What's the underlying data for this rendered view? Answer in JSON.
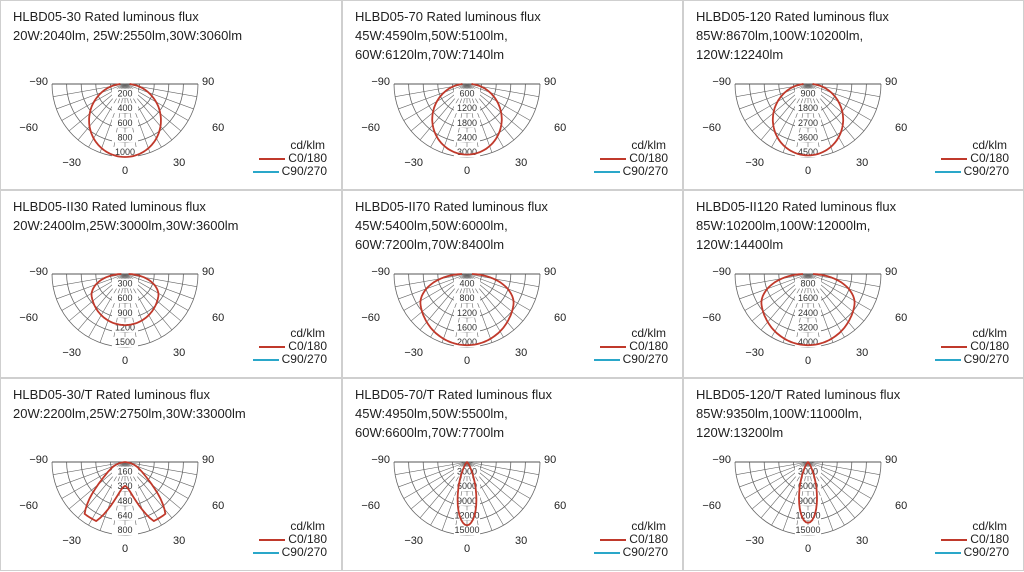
{
  "legend": {
    "unit": "cd/klm",
    "c0_label": "C0/180",
    "c90_label": "C90/270",
    "c0_color": "#c0392b",
    "c90_color": "#2aa7c9"
  },
  "angle_labels": {
    "neg90": "−90",
    "pos90": "90",
    "neg60": "−60",
    "pos60": "60",
    "neg30": "−30",
    "pos30": "30",
    "zero": "0"
  },
  "chart_data": [
    {
      "type": "polar",
      "title_lines": [
        "HLBD05-30 Rated luminous flux",
        "20W:2040lm, 25W:2550lm,30W:3060lm"
      ],
      "radial_ticks": [
        "200",
        "400",
        "600",
        "800",
        "1000"
      ],
      "rmax": 1000,
      "curve": {
        "name": "C0/180",
        "shape": "narrow",
        "peak": 1000,
        "edge": 180
      }
    },
    {
      "type": "polar",
      "title_lines": [
        "HLBD05-70 Rated luminous flux",
        "45W:4590lm,50W:5100lm,",
        "60W:6120lm,70W:7140lm"
      ],
      "radial_ticks": [
        "600",
        "1200",
        "1800",
        "2400",
        "3000"
      ],
      "rmax": 3000,
      "curve": {
        "name": "C0/180",
        "shape": "narrow",
        "peak": 2900,
        "edge": 200
      }
    },
    {
      "type": "polar",
      "title_lines": [
        "HLBD05-120 Rated luminous flux",
        "85W:8670lm,100W:10200lm,",
        "120W:12240lm"
      ],
      "radial_ticks": [
        "900",
        "1800",
        "2700",
        "3600",
        "4500"
      ],
      "rmax": 4500,
      "curve": {
        "name": "C0/180",
        "shape": "narrow",
        "peak": 4400,
        "edge": 300
      }
    },
    {
      "type": "polar",
      "title_lines": [
        "HLBD05-II30 Rated luminous flux",
        "20W:2400lm,25W:3000lm,30W:3600lm"
      ],
      "radial_ticks": [
        "300",
        "600",
        "900",
        "1200",
        "1500"
      ],
      "rmax": 1500,
      "curve": {
        "name": "C0/180",
        "shape": "wide",
        "peak": 1050,
        "edge": 250
      }
    },
    {
      "type": "polar",
      "title_lines": [
        "HLBD05-II70 Rated luminous flux",
        "45W:5400lm,50W:6000lm,",
        "60W:7200lm,70W:8400lm"
      ],
      "radial_ticks": [
        "400",
        "800",
        "1200",
        "1600",
        "2000"
      ],
      "rmax": 2000,
      "curve": {
        "name": "C0/180",
        "shape": "wide",
        "peak": 1950,
        "edge": 300
      }
    },
    {
      "type": "polar",
      "title_lines": [
        "HLBD05-II120 Rated luminous flux",
        "85W:10200lm,100W:12000lm,",
        "120W:14400lm"
      ],
      "radial_ticks": [
        "800",
        "1600",
        "2400",
        "3200",
        "4000"
      ],
      "rmax": 4000,
      "curve": {
        "name": "C0/180",
        "shape": "wide",
        "peak": 3900,
        "edge": 500
      }
    },
    {
      "type": "polar",
      "title_lines": [
        "HLBD05-30/T Rated luminous flux",
        "20W:2200lm,25W:2750lm,30W:33000lm"
      ],
      "radial_ticks": [
        "160",
        "320",
        "480",
        "640",
        "800"
      ],
      "rmax": 800,
      "curve": {
        "name": "C0/180",
        "shape": "batwing",
        "peak": 720,
        "edge": 0
      }
    },
    {
      "type": "polar",
      "title_lines": [
        "HLBD05-70/T Rated luminous flux",
        "45W:4950lm,50W:5500lm,",
        "60W:6600lm,70W:7700lm"
      ],
      "radial_ticks": [
        "3000",
        "6000",
        "9000",
        "12000",
        "15000"
      ],
      "rmax": 15000,
      "curve": {
        "name": "C0/180",
        "shape": "spot",
        "peak": 13000,
        "edge": 0
      }
    },
    {
      "type": "polar",
      "title_lines": [
        "HLBD05-120/T Rated luminous flux",
        "85W:9350lm,100W:11000lm,",
        "120W:13200lm"
      ],
      "radial_ticks": [
        "3000",
        "6000",
        "9000",
        "12000",
        "15000"
      ],
      "rmax": 15000,
      "curve": {
        "name": "C0/180",
        "shape": "spot",
        "peak": 12500,
        "edge": 0
      }
    }
  ]
}
